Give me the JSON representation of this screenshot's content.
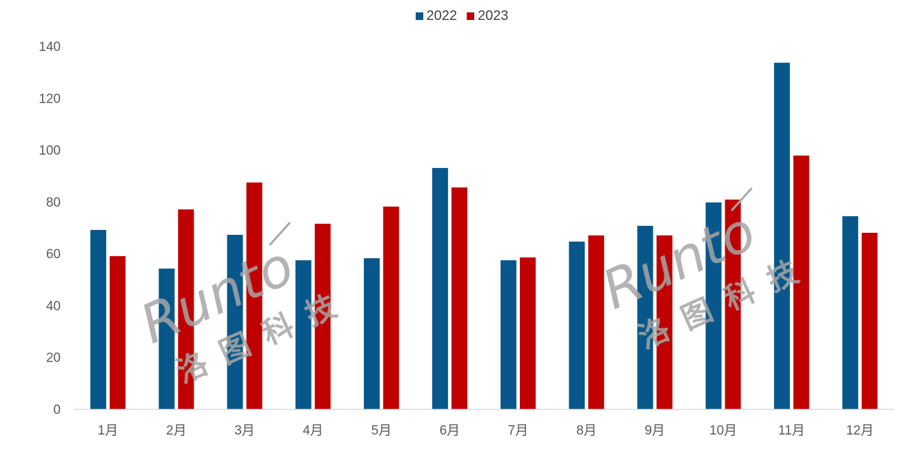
{
  "chart_data": {
    "type": "bar",
    "title": "",
    "xlabel": "",
    "ylabel": "",
    "categories": [
      "1月",
      "2月",
      "3月",
      "4月",
      "5月",
      "6月",
      "7月",
      "8月",
      "9月",
      "10月",
      "11月",
      "12月"
    ],
    "series": [
      {
        "name": "2022",
        "color": "#08578A",
        "values": [
          69.1,
          54.2,
          67.2,
          57.4,
          58.2,
          93.0,
          57.4,
          64.6,
          70.7,
          79.7,
          133.6,
          74.4
        ]
      },
      {
        "name": "2023",
        "color": "#C00000",
        "values": [
          59.0,
          77.0,
          87.4,
          71.5,
          78.1,
          85.5,
          58.5,
          67.0,
          67.0,
          80.8,
          97.8,
          68.0
        ]
      }
    ],
    "ylim": [
      0,
      140
    ],
    "yticks": [
      0,
      20,
      40,
      60,
      80,
      100,
      120,
      140
    ],
    "grid": false,
    "legend_position": "top"
  },
  "legend": {
    "items": [
      {
        "label": "2022",
        "color": "#08578A"
      },
      {
        "label": "2023",
        "color": "#C00000"
      }
    ]
  },
  "watermarks": [
    {
      "latin": "Runto",
      "chinese": "洛图科技"
    },
    {
      "latin": "Runto",
      "chinese": "洛图科技"
    }
  ]
}
